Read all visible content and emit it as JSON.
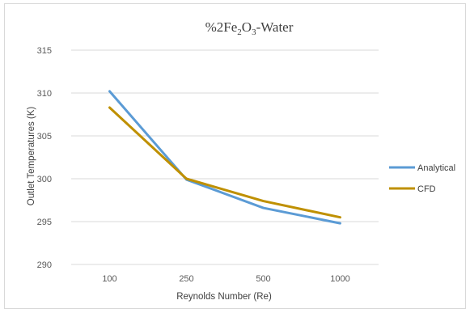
{
  "chart_data": {
    "type": "line",
    "title": {
      "prefix": "%2Fe",
      "sub1": "2",
      "mid": "O",
      "sub2": "3",
      "suffix": "-Water"
    },
    "xlabel": "Reynolds Number  (Re)",
    "ylabel": "Outlet Temperatures  (K)",
    "categories": [
      "100",
      "250",
      "500",
      "1000"
    ],
    "ylim": [
      290,
      315
    ],
    "yticks": [
      "290",
      "295",
      "300",
      "305",
      "310",
      "315"
    ],
    "grid": true,
    "legend_position": "right",
    "series": [
      {
        "name": "Analytical",
        "color": "#5b9bd5",
        "values": [
          310.2,
          299.9,
          296.6,
          294.8
        ]
      },
      {
        "name": "CFD",
        "color": "#bf9000",
        "values": [
          308.3,
          300.0,
          297.4,
          295.5
        ]
      }
    ]
  }
}
